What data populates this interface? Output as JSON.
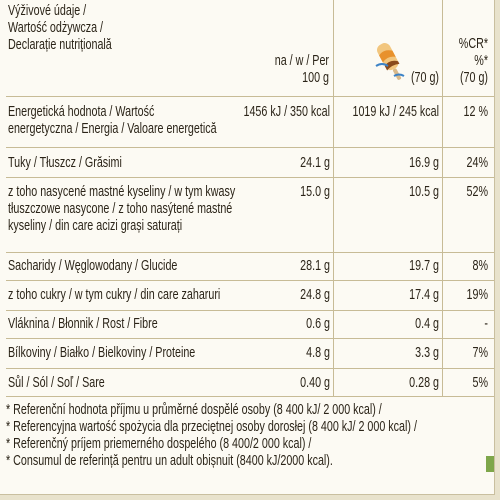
{
  "header": {
    "title_lines": [
      "Výživové údaje /",
      "Wartość odżywcza /",
      "Declarație nutrițională"
    ],
    "per100_lines": [
      "na / w / Per",
      "100 g"
    ],
    "portion_label": "(70 g)",
    "cr_lines": [
      "%CR*",
      "%*",
      "(70 g)"
    ]
  },
  "rows": [
    {
      "label_lines": [
        "Energetická hodnota / Wartość",
        "energetyczna / Energia / Valoare energetică"
      ],
      "per100": "1456 kJ / 350 kcal",
      "portion": "1019 kJ / 245 kcal",
      "cr": "12 %"
    },
    {
      "label_lines": [
        "Tuky / Tłuszcz / Grăsimi"
      ],
      "per100": "24.1 g",
      "portion": "16.9 g",
      "cr": "24%"
    },
    {
      "label_lines": [
        "z toho nasycené mastné kyseliny / w tym kwasy",
        "tłuszczowe nasycone / z toho nasýtené mastné",
        "kyseliny / din care acizi grași saturați"
      ],
      "per100": "15.0 g",
      "portion": "10.5 g",
      "cr": "52%"
    },
    {
      "label_lines": [
        "Sacharidy / Węglowodany / Glucide"
      ],
      "per100": "28.1 g",
      "portion": "19.7 g",
      "cr": "8%"
    },
    {
      "label_lines": [
        "z toho cukry / w tym cukry / din care zaharuri"
      ],
      "per100": "24.8 g",
      "portion": "17.4 g",
      "cr": "19%"
    },
    {
      "label_lines": [
        "Vláknina / Błonnik / Rost / Fibre"
      ],
      "per100": "0.6 g",
      "portion": "0.4 g",
      "cr": "-"
    },
    {
      "label_lines": [
        "Bílkoviny / Białko / Bielkoviny / Proteine"
      ],
      "per100": "4.8 g",
      "portion": "3.3 g",
      "cr": "7%"
    },
    {
      "label_lines": [
        "Sůl / Sól / Soľ / Sare"
      ],
      "per100": "0.40 g",
      "portion": "0.28 g",
      "cr": "5%"
    }
  ],
  "footnotes": [
    "* Referenční hodnota příjmu u průměrné dospělé osoby (8 400 kJ/ 2 000 kcal) /",
    "* Referencyjna wartość spożycia dla przeciętnej osoby dorosłej (8 400 kJ/ 2 000 kcal) /",
    "* Referenčný príjem priemerného dospelého (8 400/2 000 kcal) /",
    "* Consumul de referință pentru un adult obișnuit (8400 kJ/2000 kcal)."
  ],
  "icons": {
    "portion_icon": "ice-cream-bar-icon"
  },
  "colors": {
    "background": "#fcfaf3",
    "rule": "#c7bb96",
    "text": "#2b2418",
    "accent": "#e8912c"
  }
}
